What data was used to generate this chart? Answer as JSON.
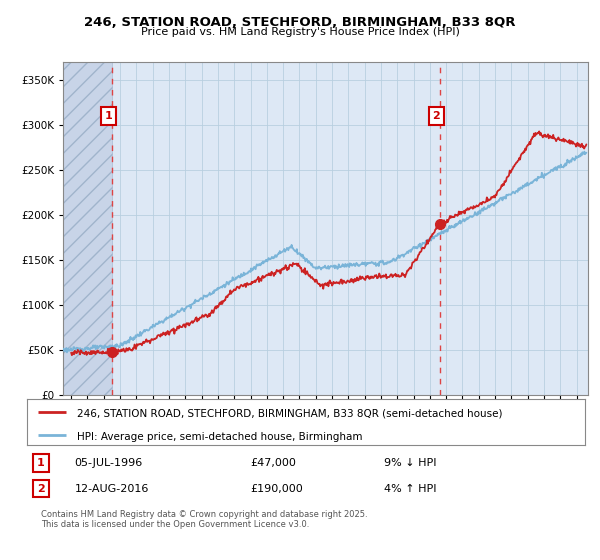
{
  "title_line1": "246, STATION ROAD, STECHFORD, BIRMINGHAM, B33 8QR",
  "title_line2": "Price paid vs. HM Land Registry's House Price Index (HPI)",
  "ylim": [
    0,
    370000
  ],
  "yticks": [
    0,
    50000,
    100000,
    150000,
    200000,
    250000,
    300000,
    350000
  ],
  "ytick_labels": [
    "£0",
    "£50K",
    "£100K",
    "£150K",
    "£200K",
    "£250K",
    "£300K",
    "£350K"
  ],
  "xlim_start": 1993.5,
  "xlim_end": 2025.7,
  "hpi_color": "#7ab4d8",
  "price_color": "#cc2222",
  "marker1_date": 1996.52,
  "marker1_price": 47000,
  "marker1_label": "1",
  "marker2_date": 2016.62,
  "marker2_price": 190000,
  "marker2_label": "2",
  "legend_line1": "246, STATION ROAD, STECHFORD, BIRMINGHAM, B33 8QR (semi-detached house)",
  "legend_line2": "HPI: Average price, semi-detached house, Birmingham",
  "annotation1_date": "05-JUL-1996",
  "annotation1_price": "£47,000",
  "annotation1_hpi": "9% ↓ HPI",
  "annotation2_date": "12-AUG-2016",
  "annotation2_price": "£190,000",
  "annotation2_hpi": "4% ↑ HPI",
  "copyright_text": "Contains HM Land Registry data © Crown copyright and database right 2025.\nThis data is licensed under the Open Government Licence v3.0.",
  "bg_color": "#ffffff",
  "plot_bg": "#dde8f5",
  "grid_color": "#b8cfe0",
  "hatch_bg": "#c8d4e8",
  "dashed_marker_color": "#dd4444",
  "marker_box_color": "#cc0000"
}
